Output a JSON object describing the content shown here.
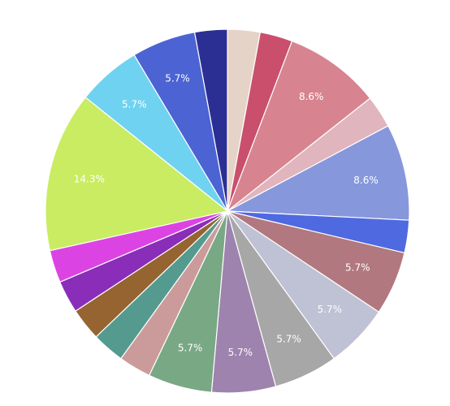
{
  "chart_data": {
    "type": "pie",
    "title": "",
    "start": "top",
    "direction": "clockwise",
    "slices": [
      {
        "value": 2.9,
        "color": "#e6d3c7",
        "label": ""
      },
      {
        "value": 2.9,
        "color": "#c94f6d",
        "label": ""
      },
      {
        "value": 8.6,
        "color": "#d78490",
        "label": "8.6%"
      },
      {
        "value": 2.9,
        "color": "#e1b5be",
        "label": ""
      },
      {
        "value": 8.6,
        "color": "#8797dc",
        "label": "8.6%"
      },
      {
        "value": 2.9,
        "color": "#4f69e0",
        "label": ""
      },
      {
        "value": 5.7,
        "color": "#b2787f",
        "label": "5.7%"
      },
      {
        "value": 5.7,
        "color": "#bfc1d4",
        "label": "5.7%"
      },
      {
        "value": 5.7,
        "color": "#a7a7a7",
        "label": "5.7%"
      },
      {
        "value": 5.7,
        "color": "#9d83ad",
        "label": "5.7%"
      },
      {
        "value": 5.7,
        "color": "#79a884",
        "label": "5.7%"
      },
      {
        "value": 2.9,
        "color": "#cb9b9b",
        "label": ""
      },
      {
        "value": 2.9,
        "color": "#559a8f",
        "label": ""
      },
      {
        "value": 2.9,
        "color": "#966430",
        "label": ""
      },
      {
        "value": 2.9,
        "color": "#8a2db9",
        "label": ""
      },
      {
        "value": 2.9,
        "color": "#db44e3",
        "label": ""
      },
      {
        "value": 14.3,
        "color": "#c9ec62",
        "label": "14.3%"
      },
      {
        "value": 5.7,
        "color": "#6fd2f1",
        "label": "5.7%"
      },
      {
        "value": 5.7,
        "color": "#4c63d3",
        "label": "5.7%"
      },
      {
        "value": 2.9,
        "color": "#2b2f94",
        "label": ""
      }
    ]
  }
}
